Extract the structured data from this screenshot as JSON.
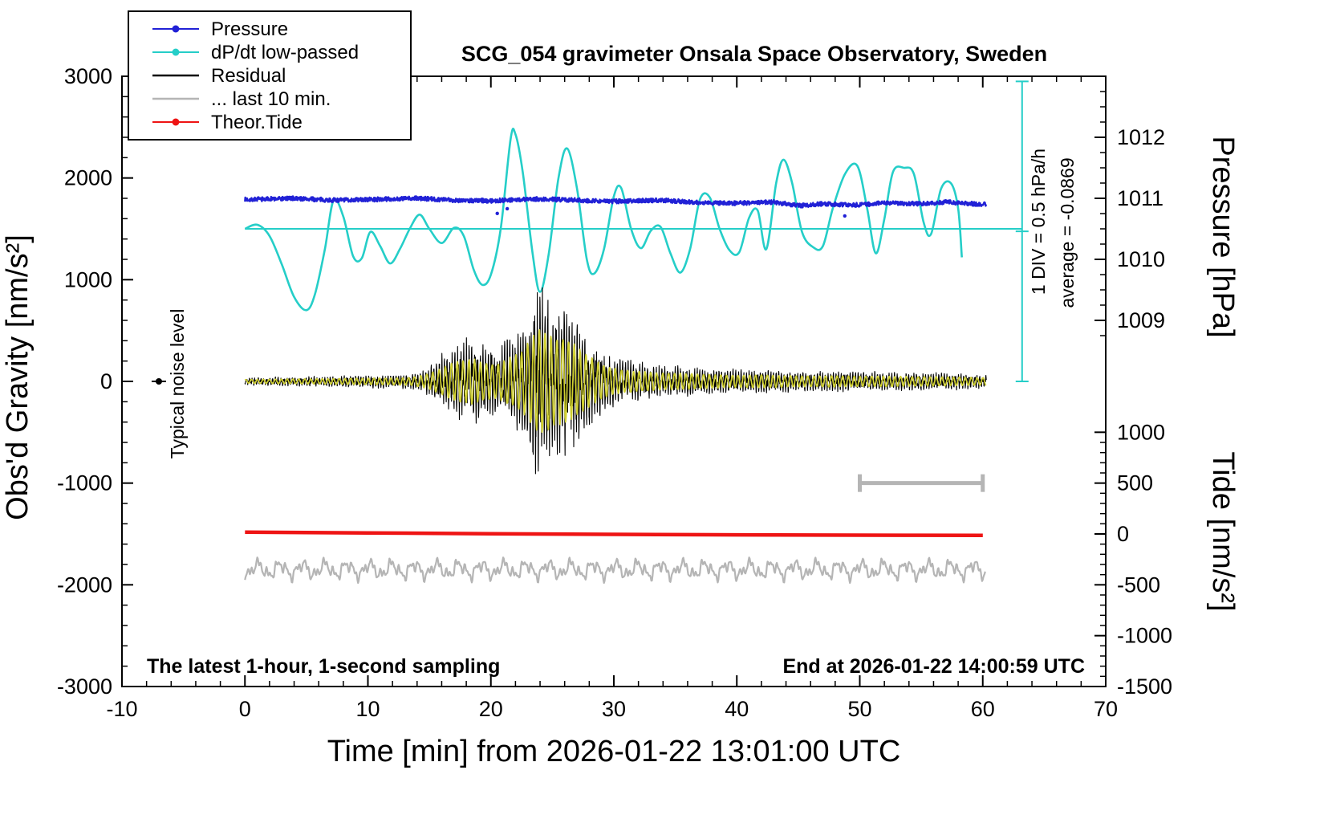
{
  "title": "SCG_054 gravimeter Onsala Space Observatory, Sweden",
  "annotations": {
    "bottom_left": "The latest 1-hour, 1-second sampling",
    "bottom_right": "End at 2026-01-22 14:00:59 UTC",
    "noise_label": "Typical noise level",
    "div_label": "1 DIV = 0.5 hPa/h",
    "average_label": "average = -0.0869"
  },
  "axes": {
    "x_label": "Time [min] from 2026-01-22 13:01:00 UTC",
    "y_left_label": "Obs'd Gravity [nm/s²]",
    "y_right_top_label": "Pressure [hPa]",
    "y_right_bottom_label": "Tide [nm/s²]",
    "xlim": [
      -10,
      70
    ],
    "ylim_gravity": [
      -3000,
      3000
    ],
    "x_ticks": [
      -10,
      0,
      10,
      20,
      30,
      40,
      50,
      60,
      70
    ],
    "x_minor_step": 2,
    "y_left_ticks": [
      -3000,
      -2000,
      -1000,
      0,
      1000,
      2000,
      3000
    ],
    "y_left_minor_step": 200,
    "pressure_ticks": [
      1009,
      1010,
      1011,
      1012
    ],
    "pressure_minor_step": 0.25,
    "tide_ticks": [
      -1500,
      -1000,
      -500,
      0,
      500,
      1000
    ],
    "tide_minor_step": 100,
    "pressure_to_gravity": {
      "offset_hpa": 1008,
      "scale": 600
    },
    "tide_to_gravity_offset": -1500
  },
  "legend": {
    "items": [
      {
        "label": "Pressure",
        "color": "#2121d6",
        "marker": "dot-line"
      },
      {
        "label": "dP/dt low-passed",
        "color": "#25cec8",
        "marker": "dot-line"
      },
      {
        "label": "Residual",
        "color": "#000000",
        "marker": "line"
      },
      {
        "label": "... last 10 min.",
        "color": "#b5b5b5",
        "marker": "line"
      },
      {
        "label": "Theor.Tide",
        "color": "#ee1414",
        "marker": "dot-line"
      }
    ]
  },
  "chart_data": {
    "type": "line",
    "x_unit": "minutes from 2026-01-22 13:01:00 UTC",
    "noise_level_marker": {
      "t": -7,
      "gravity": 0
    },
    "series": [
      {
        "name": "Low-passed residual trace (gray)",
        "axis": "gravity",
        "style": "wiggle",
        "color": "#b5b5b5",
        "seed": 31,
        "t_range": [
          0,
          60.2
        ],
        "baseline": -1850,
        "amplitudes": [
          55,
          38,
          26,
          18
        ],
        "freqs": [
          0.55,
          1.3,
          2.6,
          4.1
        ],
        "line_width": 2.2
      },
      {
        "name": "Theor.Tide",
        "axis": "tide",
        "style": "smooth-line",
        "color": "#ee1414",
        "t_range": [
          0,
          60.4
        ],
        "line_width": 4.5,
        "control_points": [
          [
            0,
            18
          ],
          [
            10,
            10
          ],
          [
            20,
            2
          ],
          [
            30,
            -4
          ],
          [
            40,
            -9
          ],
          [
            50,
            -12
          ],
          [
            60,
            -14
          ]
        ]
      },
      {
        "name": "dP/dt low-passed",
        "axis": "gravity",
        "style": "smooth-line",
        "color": "#25cec8",
        "t_range": [
          0,
          58.3
        ],
        "line_width": 2.6,
        "reference_line_gravity": 1500,
        "reference_line_t": [
          0,
          63.2
        ],
        "scale_bar": {
          "t": 63.2,
          "g_from": 0,
          "g_to": 2950,
          "tick_halfwidth": 8
        },
        "control_points": [
          [
            0,
            1500
          ],
          [
            1,
            1540
          ],
          [
            2,
            1430
          ],
          [
            3,
            1150
          ],
          [
            4,
            830
          ],
          [
            5,
            700
          ],
          [
            5.7,
            860
          ],
          [
            6.5,
            1300
          ],
          [
            7.2,
            1780
          ],
          [
            8,
            1620
          ],
          [
            8.8,
            1230
          ],
          [
            9.5,
            1210
          ],
          [
            10.2,
            1470
          ],
          [
            11,
            1330
          ],
          [
            11.8,
            1160
          ],
          [
            12.6,
            1300
          ],
          [
            13.4,
            1500
          ],
          [
            14.2,
            1640
          ],
          [
            15,
            1500
          ],
          [
            16,
            1360
          ],
          [
            17,
            1510
          ],
          [
            17.8,
            1430
          ],
          [
            18.6,
            1100
          ],
          [
            19.3,
            950
          ],
          [
            20,
            1050
          ],
          [
            20.8,
            1500
          ],
          [
            21.6,
            2380
          ],
          [
            22,
            2430
          ],
          [
            22.6,
            2050
          ],
          [
            23.4,
            1250
          ],
          [
            24,
            880
          ],
          [
            24.7,
            1250
          ],
          [
            25.5,
            2000
          ],
          [
            26.2,
            2290
          ],
          [
            27,
            1900
          ],
          [
            27.8,
            1200
          ],
          [
            28.4,
            1060
          ],
          [
            29.2,
            1300
          ],
          [
            30,
            1820
          ],
          [
            30.6,
            1900
          ],
          [
            31.4,
            1500
          ],
          [
            32.2,
            1310
          ],
          [
            33,
            1480
          ],
          [
            33.8,
            1520
          ],
          [
            34.6,
            1260
          ],
          [
            35.4,
            1070
          ],
          [
            36.2,
            1300
          ],
          [
            37,
            1790
          ],
          [
            37.8,
            1810
          ],
          [
            38.6,
            1500
          ],
          [
            39.4,
            1290
          ],
          [
            40.2,
            1270
          ],
          [
            41,
            1610
          ],
          [
            41.7,
            1680
          ],
          [
            42.4,
            1300
          ],
          [
            43.2,
            1950
          ],
          [
            43.8,
            2180
          ],
          [
            44.5,
            1950
          ],
          [
            45.3,
            1470
          ],
          [
            46.2,
            1320
          ],
          [
            47,
            1330
          ],
          [
            47.8,
            1700
          ],
          [
            48.8,
            2040
          ],
          [
            49.8,
            2120
          ],
          [
            50.6,
            1700
          ],
          [
            51.3,
            1260
          ],
          [
            52,
            1600
          ],
          [
            52.7,
            2060
          ],
          [
            53.6,
            2100
          ],
          [
            54.4,
            2040
          ],
          [
            55.2,
            1560
          ],
          [
            55.8,
            1450
          ],
          [
            56.6,
            1890
          ],
          [
            57.4,
            1950
          ],
          [
            58,
            1700
          ],
          [
            58.3,
            1220
          ]
        ]
      },
      {
        "name": "Pressure",
        "axis": "pressure",
        "style": "noisy-line",
        "color": "#2121d6",
        "seed": 7,
        "t_range": [
          0,
          60.3
        ],
        "line_width": 2.4,
        "noise_hpa": 0.035,
        "outlier_prob": 0.002,
        "outlier_depth": [
          0.05,
          0.17
        ],
        "control_points": [
          [
            0,
            1010.98
          ],
          [
            4,
            1011.0
          ],
          [
            7,
            1010.97
          ],
          [
            10,
            1010.98
          ],
          [
            14,
            1011.0
          ],
          [
            17,
            1010.97
          ],
          [
            20,
            1010.96
          ],
          [
            24,
            1010.99
          ],
          [
            27,
            1010.97
          ],
          [
            30,
            1010.95
          ],
          [
            34,
            1010.97
          ],
          [
            37,
            1010.93
          ],
          [
            40,
            1010.92
          ],
          [
            43,
            1010.94
          ],
          [
            45,
            1010.88
          ],
          [
            47,
            1010.91
          ],
          [
            50,
            1010.89
          ],
          [
            52,
            1010.93
          ],
          [
            55,
            1010.91
          ],
          [
            57,
            1010.94
          ],
          [
            60,
            1010.9
          ]
        ]
      },
      {
        "name": "Residual",
        "axis": "gravity",
        "style": "oscillation",
        "color": "#000000",
        "seed": 11,
        "t_range": [
          0,
          60.3
        ],
        "dt": 0.016,
        "line_width": 1.1,
        "gain": 0.9,
        "noise": 0.5,
        "freqs": [
          4.5,
          9.5
        ],
        "weights": [
          0.55,
          0.4
        ],
        "phase_jitter": [
          0.35,
          0.5
        ],
        "envelope": [
          [
            0,
            35
          ],
          [
            3,
            45
          ],
          [
            6,
            50
          ],
          [
            9,
            60
          ],
          [
            12,
            65
          ],
          [
            13.5,
            75
          ],
          [
            14.5,
            120
          ],
          [
            15.5,
            200
          ],
          [
            16.5,
            320
          ],
          [
            17.5,
            400
          ],
          [
            18.5,
            430
          ],
          [
            19.5,
            350
          ],
          [
            20.5,
            330
          ],
          [
            21.5,
            450
          ],
          [
            22.5,
            550
          ],
          [
            23.2,
            800
          ],
          [
            23.8,
            1000
          ],
          [
            24.5,
            980
          ],
          [
            25.2,
            850
          ],
          [
            26,
            800
          ],
          [
            26.8,
            700
          ],
          [
            27.5,
            560
          ],
          [
            28.5,
            400
          ],
          [
            29.5,
            280
          ],
          [
            30.5,
            230
          ],
          [
            32,
            190
          ],
          [
            34,
            160
          ],
          [
            36,
            150
          ],
          [
            38,
            130
          ],
          [
            40,
            115
          ],
          [
            42,
            125
          ],
          [
            44,
            110
          ],
          [
            46,
            100
          ],
          [
            48,
            110
          ],
          [
            50,
            95
          ],
          [
            52,
            100
          ],
          [
            54,
            90
          ],
          [
            56,
            88
          ],
          [
            58,
            80
          ],
          [
            60,
            70
          ]
        ]
      },
      {
        "name": "Residual band-passed overlay (yellow)",
        "axis": "gravity",
        "style": "oscillation",
        "color": "#d0d030",
        "seed": 23,
        "t_range": [
          0,
          60.3
        ],
        "dt": 0.02,
        "line_width": 1.7,
        "gain": 0.5,
        "noise": 0.1,
        "envelope_ref": "Residual",
        "envelope_scale": 1,
        "freqs": [
          2.1
        ],
        "weights": [
          1.0
        ],
        "phase_jitter": [
          0.18
        ]
      },
      {
        "name": "... last 10 min. interval bar",
        "axis": "gravity",
        "style": "interval-bar",
        "color": "#b5b5b5",
        "t_range": [
          50,
          60
        ],
        "gravity_level": -1000,
        "line_width": 5,
        "cap_halfheight": 11
      }
    ]
  }
}
